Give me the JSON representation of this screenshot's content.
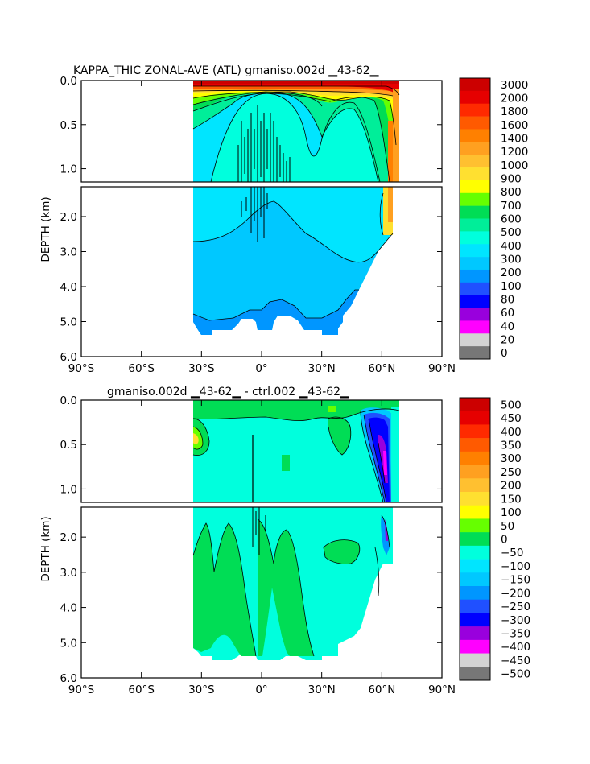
{
  "chart_data": [
    {
      "type": "heatmap",
      "title": "KAPPA_THIC ZONAL-AVE (ATL) gmaniso.002d ▁43-62▁",
      "ylabel": "DEPTH (km)",
      "xlabel": "",
      "x_ticks": [
        "90°S",
        "60°S",
        "30°S",
        "0°",
        "30°N",
        "60°N",
        "90°N"
      ],
      "x_tick_values": [
        -90,
        -60,
        -30,
        0,
        30,
        60,
        90
      ],
      "y_ticks_upper": [
        "0.0",
        "0.5",
        "1.0"
      ],
      "y_ticks_lower": [
        "2.0",
        "3.0",
        "4.0",
        "5.0",
        "6.0"
      ],
      "y_upper_values": [
        0.0,
        0.5,
        1.0
      ],
      "y_lower_values": [
        2.0,
        3.0,
        4.0,
        5.0,
        6.0
      ],
      "upper_range": [
        0.0,
        1.15
      ],
      "lower_range": [
        1.15,
        6.0
      ],
      "xlim": [
        -90,
        90
      ],
      "data_lat_range": [
        -34,
        69
      ],
      "colorbar_labels": [
        "3000",
        "2000",
        "1800",
        "1600",
        "1400",
        "1200",
        "1000",
        "900",
        "800",
        "700",
        "600",
        "500",
        "400",
        "300",
        "200",
        "100",
        "80",
        "60",
        "40",
        "20",
        "0"
      ],
      "colorbar_colors": [
        "#cc0000",
        "#e60000",
        "#ff2a00",
        "#ff5a00",
        "#ff8000",
        "#ffa020",
        "#ffc030",
        "#ffe030",
        "#ffff00",
        "#66ff00",
        "#00dd55",
        "#00ee99",
        "#00ffdd",
        "#00e5ff",
        "#00c8ff",
        "#0096ff",
        "#2050ff",
        "#0000ff",
        "#9900dd",
        "#ff00ff",
        "#d3d3d3",
        "#777777"
      ]
    },
    {
      "type": "heatmap",
      "title": "gmaniso.002d ▁43-62▁ - ctrl.002 ▁43-62▁",
      "ylabel": "DEPTH (km)",
      "xlabel": "",
      "x_ticks": [
        "90°S",
        "60°S",
        "30°S",
        "0°",
        "30°N",
        "60°N",
        "90°N"
      ],
      "x_tick_values": [
        -90,
        -60,
        -30,
        0,
        30,
        60,
        90
      ],
      "y_ticks_upper": [
        "0.0",
        "0.5",
        "1.0"
      ],
      "y_ticks_lower": [
        "2.0",
        "3.0",
        "4.0",
        "5.0",
        "6.0"
      ],
      "y_upper_values": [
        0.0,
        0.5,
        1.0
      ],
      "y_lower_values": [
        2.0,
        3.0,
        4.0,
        5.0,
        6.0
      ],
      "upper_range": [
        0.0,
        1.15
      ],
      "lower_range": [
        1.15,
        6.0
      ],
      "xlim": [
        -90,
        90
      ],
      "data_lat_range": [
        -34,
        69
      ],
      "colorbar_labels": [
        "500",
        "450",
        "400",
        "350",
        "300",
        "250",
        "200",
        "150",
        "100",
        "50",
        "0",
        "−50",
        "−100",
        "−150",
        "−200",
        "−250",
        "−300",
        "−350",
        "−400",
        "−450",
        "−500"
      ],
      "colorbar_colors": [
        "#cc0000",
        "#e60000",
        "#ff2a00",
        "#ff5a00",
        "#ff8000",
        "#ffa020",
        "#ffc030",
        "#ffe030",
        "#ffff00",
        "#66ff00",
        "#00dd55",
        "#00ffdd",
        "#00e5ff",
        "#00c8ff",
        "#0096ff",
        "#2050ff",
        "#0000ff",
        "#9900dd",
        "#ff00ff",
        "#d3d3d3",
        "#777777"
      ]
    }
  ]
}
